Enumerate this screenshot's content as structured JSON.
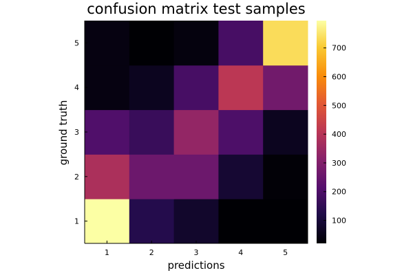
{
  "chart_data": {
    "type": "heatmap",
    "title": "confusion matrix test samples",
    "xlabel": "predictions",
    "ylabel": "ground truth",
    "x": [
      1,
      2,
      3,
      4,
      5
    ],
    "y": [
      1,
      2,
      3,
      4,
      5
    ],
    "x_tick_labels": [
      "1",
      "2",
      "3",
      "4",
      "5"
    ],
    "y_tick_labels": [
      "1",
      "2",
      "3",
      "4",
      "5"
    ],
    "z_rows_by_ground_truth": [
      [
        795,
        130,
        80,
        20,
        20
      ],
      [
        380,
        260,
        260,
        90,
        25
      ],
      [
        205,
        165,
        335,
        200,
        60
      ],
      [
        40,
        60,
        190,
        410,
        270
      ],
      [
        40,
        20,
        35,
        190,
        735
      ]
    ],
    "colorbar": {
      "colormap": "inferno",
      "clim": [
        20,
        795
      ],
      "ticks": [
        100,
        200,
        300,
        400,
        500,
        600,
        700
      ],
      "tick_labels": [
        "100",
        "200",
        "300",
        "400",
        "500",
        "600",
        "700"
      ]
    },
    "grid": false,
    "legend": "none"
  }
}
